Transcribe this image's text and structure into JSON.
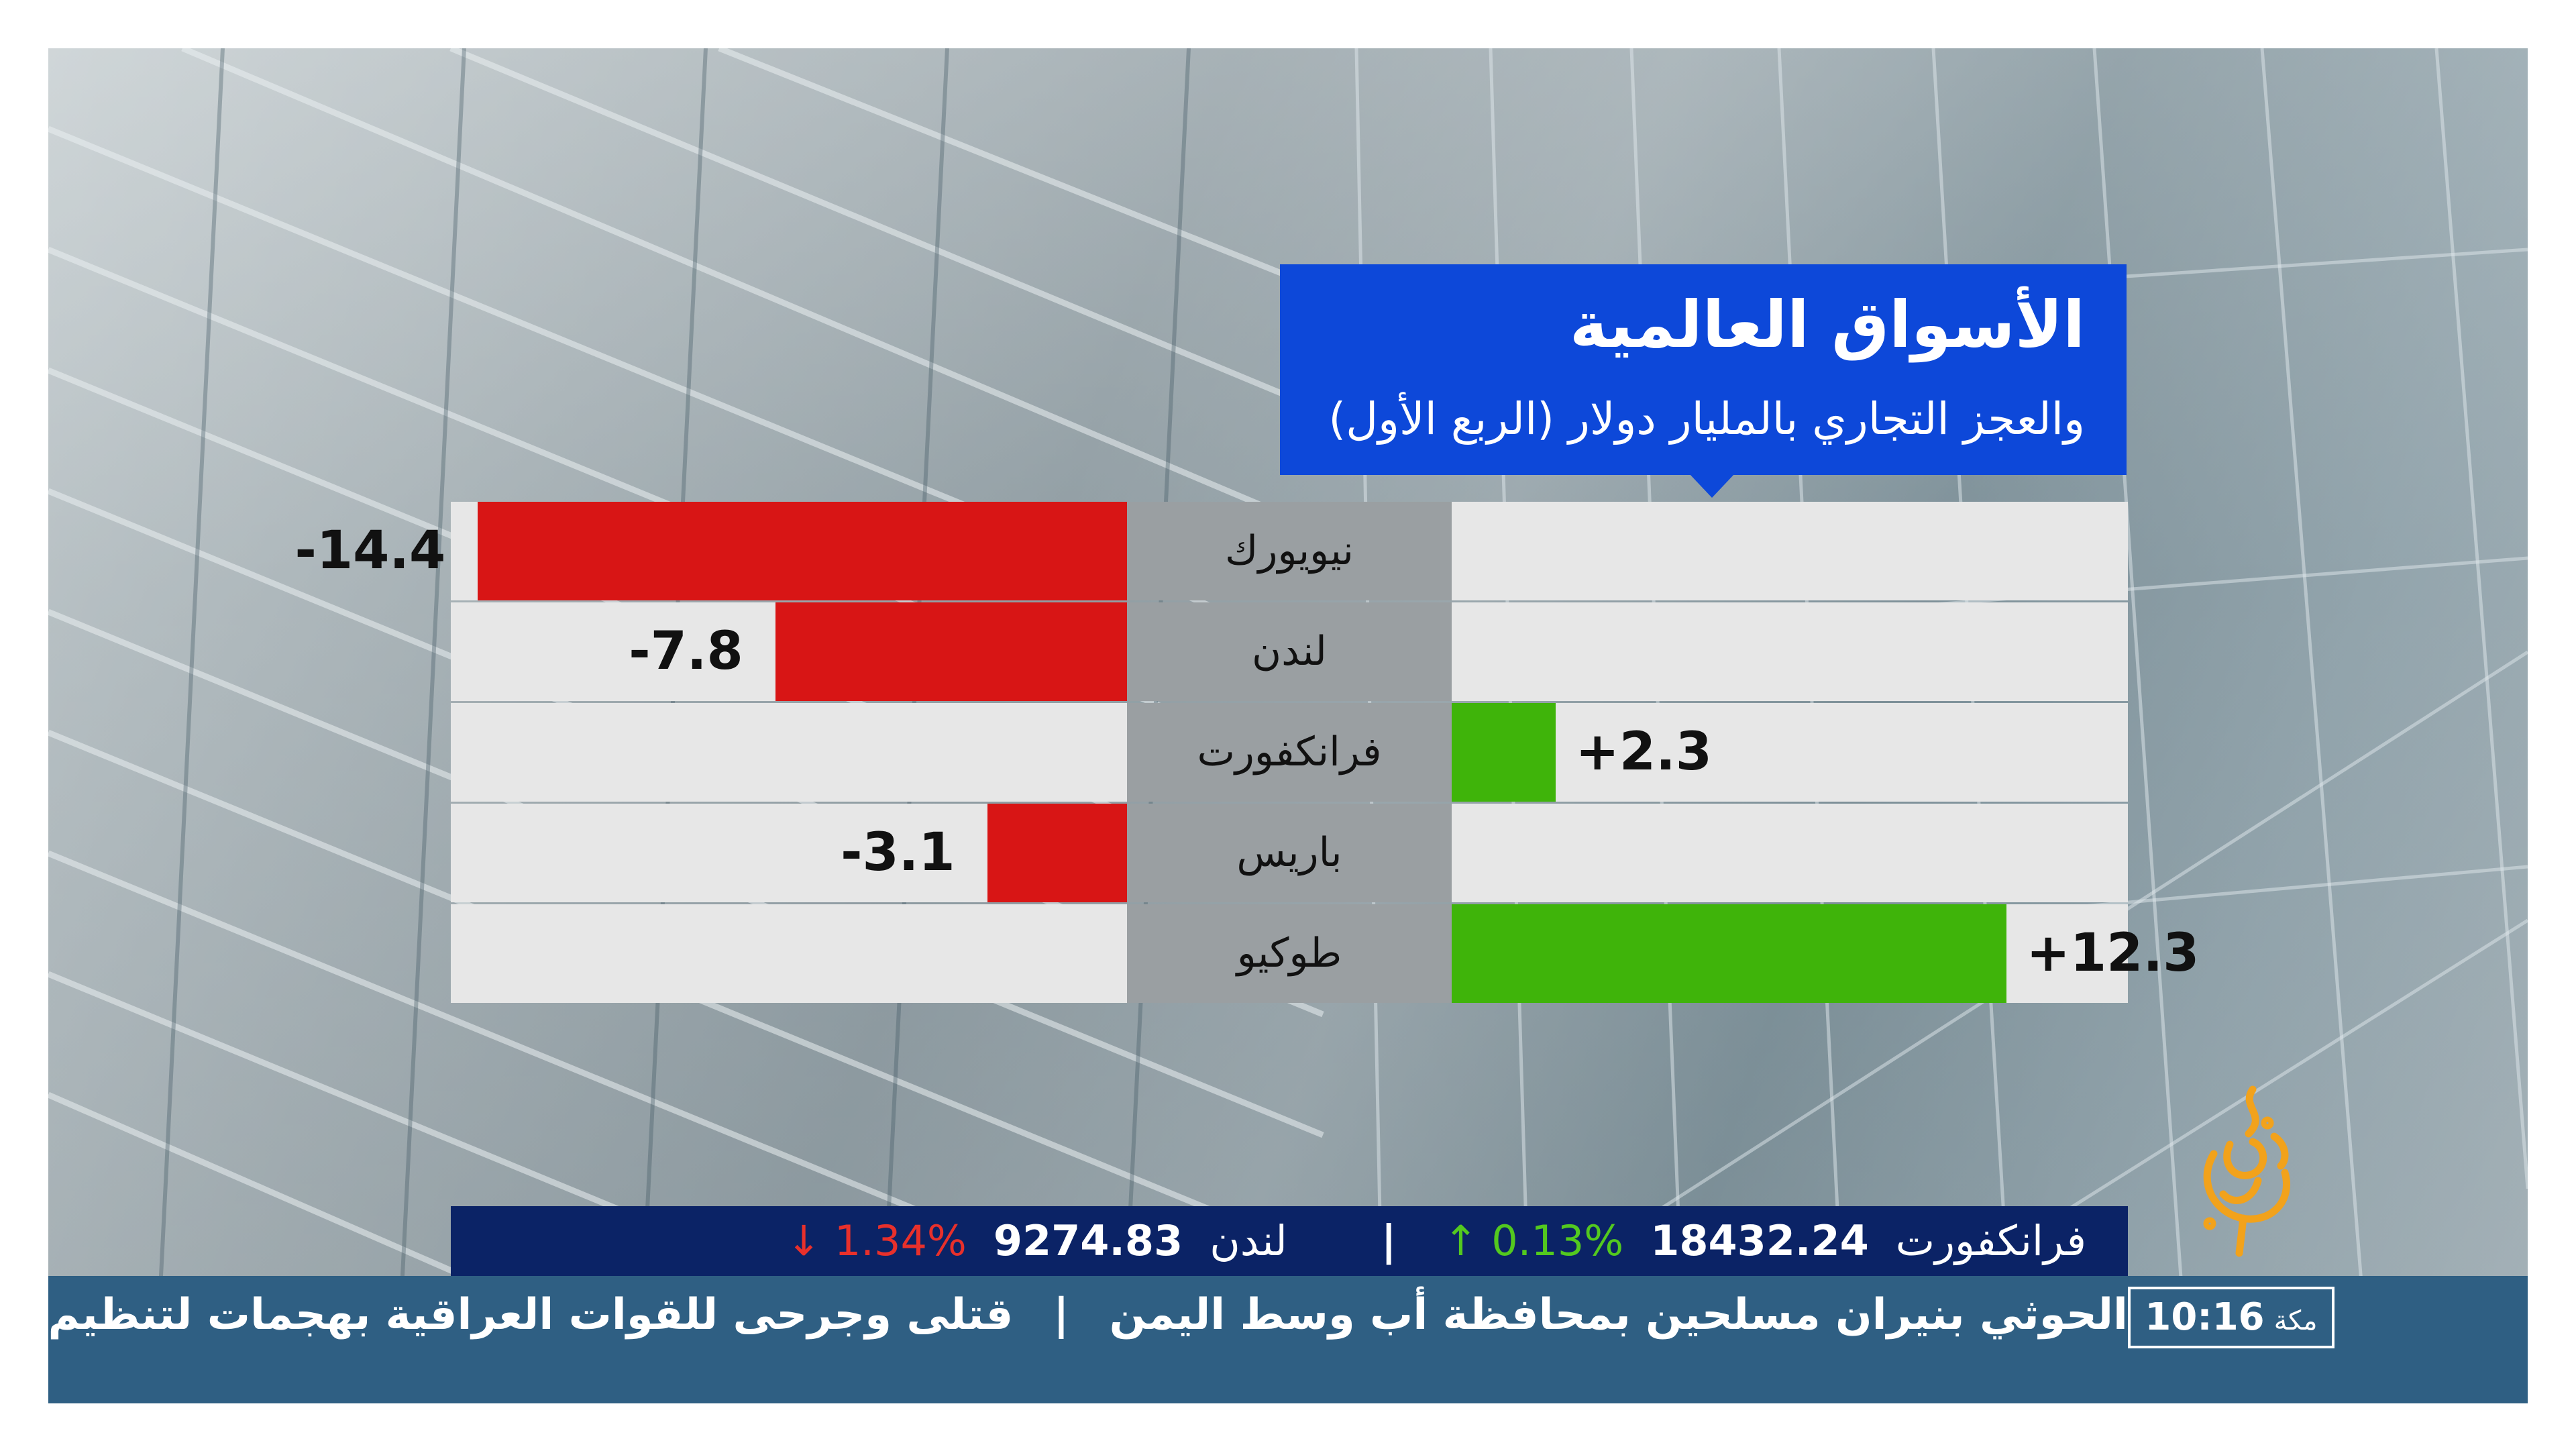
{
  "graphic": {
    "title": "الأسواق العالمية",
    "subtitle": "والعجز التجاري بالمليار دولار (الربع الأول)"
  },
  "chart_data": {
    "type": "bar",
    "orientation": "horizontal-diverging",
    "categories": [
      "نيويورك",
      "لندن",
      "فرانكفورت",
      "باريس",
      "طوكيو"
    ],
    "values": [
      -14.4,
      -7.8,
      2.3,
      -3.1,
      12.3
    ],
    "value_labels": [
      "-14.4",
      "-7.8",
      "+2.3",
      "-3.1",
      "+12.3"
    ],
    "xlim": [
      -15,
      15
    ],
    "colors": {
      "negative": "#d81515",
      "positive": "#3fb40a"
    }
  },
  "markets_ticker": {
    "items": [
      {
        "name": "فرانكفورت",
        "value": "18432.24",
        "change": "0.13%",
        "arrow": "↑",
        "direction": "up"
      },
      {
        "name": "لندن",
        "value": "9274.83",
        "change": "1.34%",
        "arrow": "↓",
        "direction": "down"
      }
    ],
    "separator": "|"
  },
  "news_ticker": {
    "items": [
      "ة الحوثي بنيران مسلحين بمحافظة أب وسط اليمن",
      "قتلى وجرحى للقوات العراقية بهجمات لتنظيم"
    ],
    "separator": "|"
  },
  "clock": {
    "city": "مكة",
    "time": "10:16"
  },
  "logo": {
    "icon": "al-jazeera-logo",
    "color": "#f2a21b"
  }
}
